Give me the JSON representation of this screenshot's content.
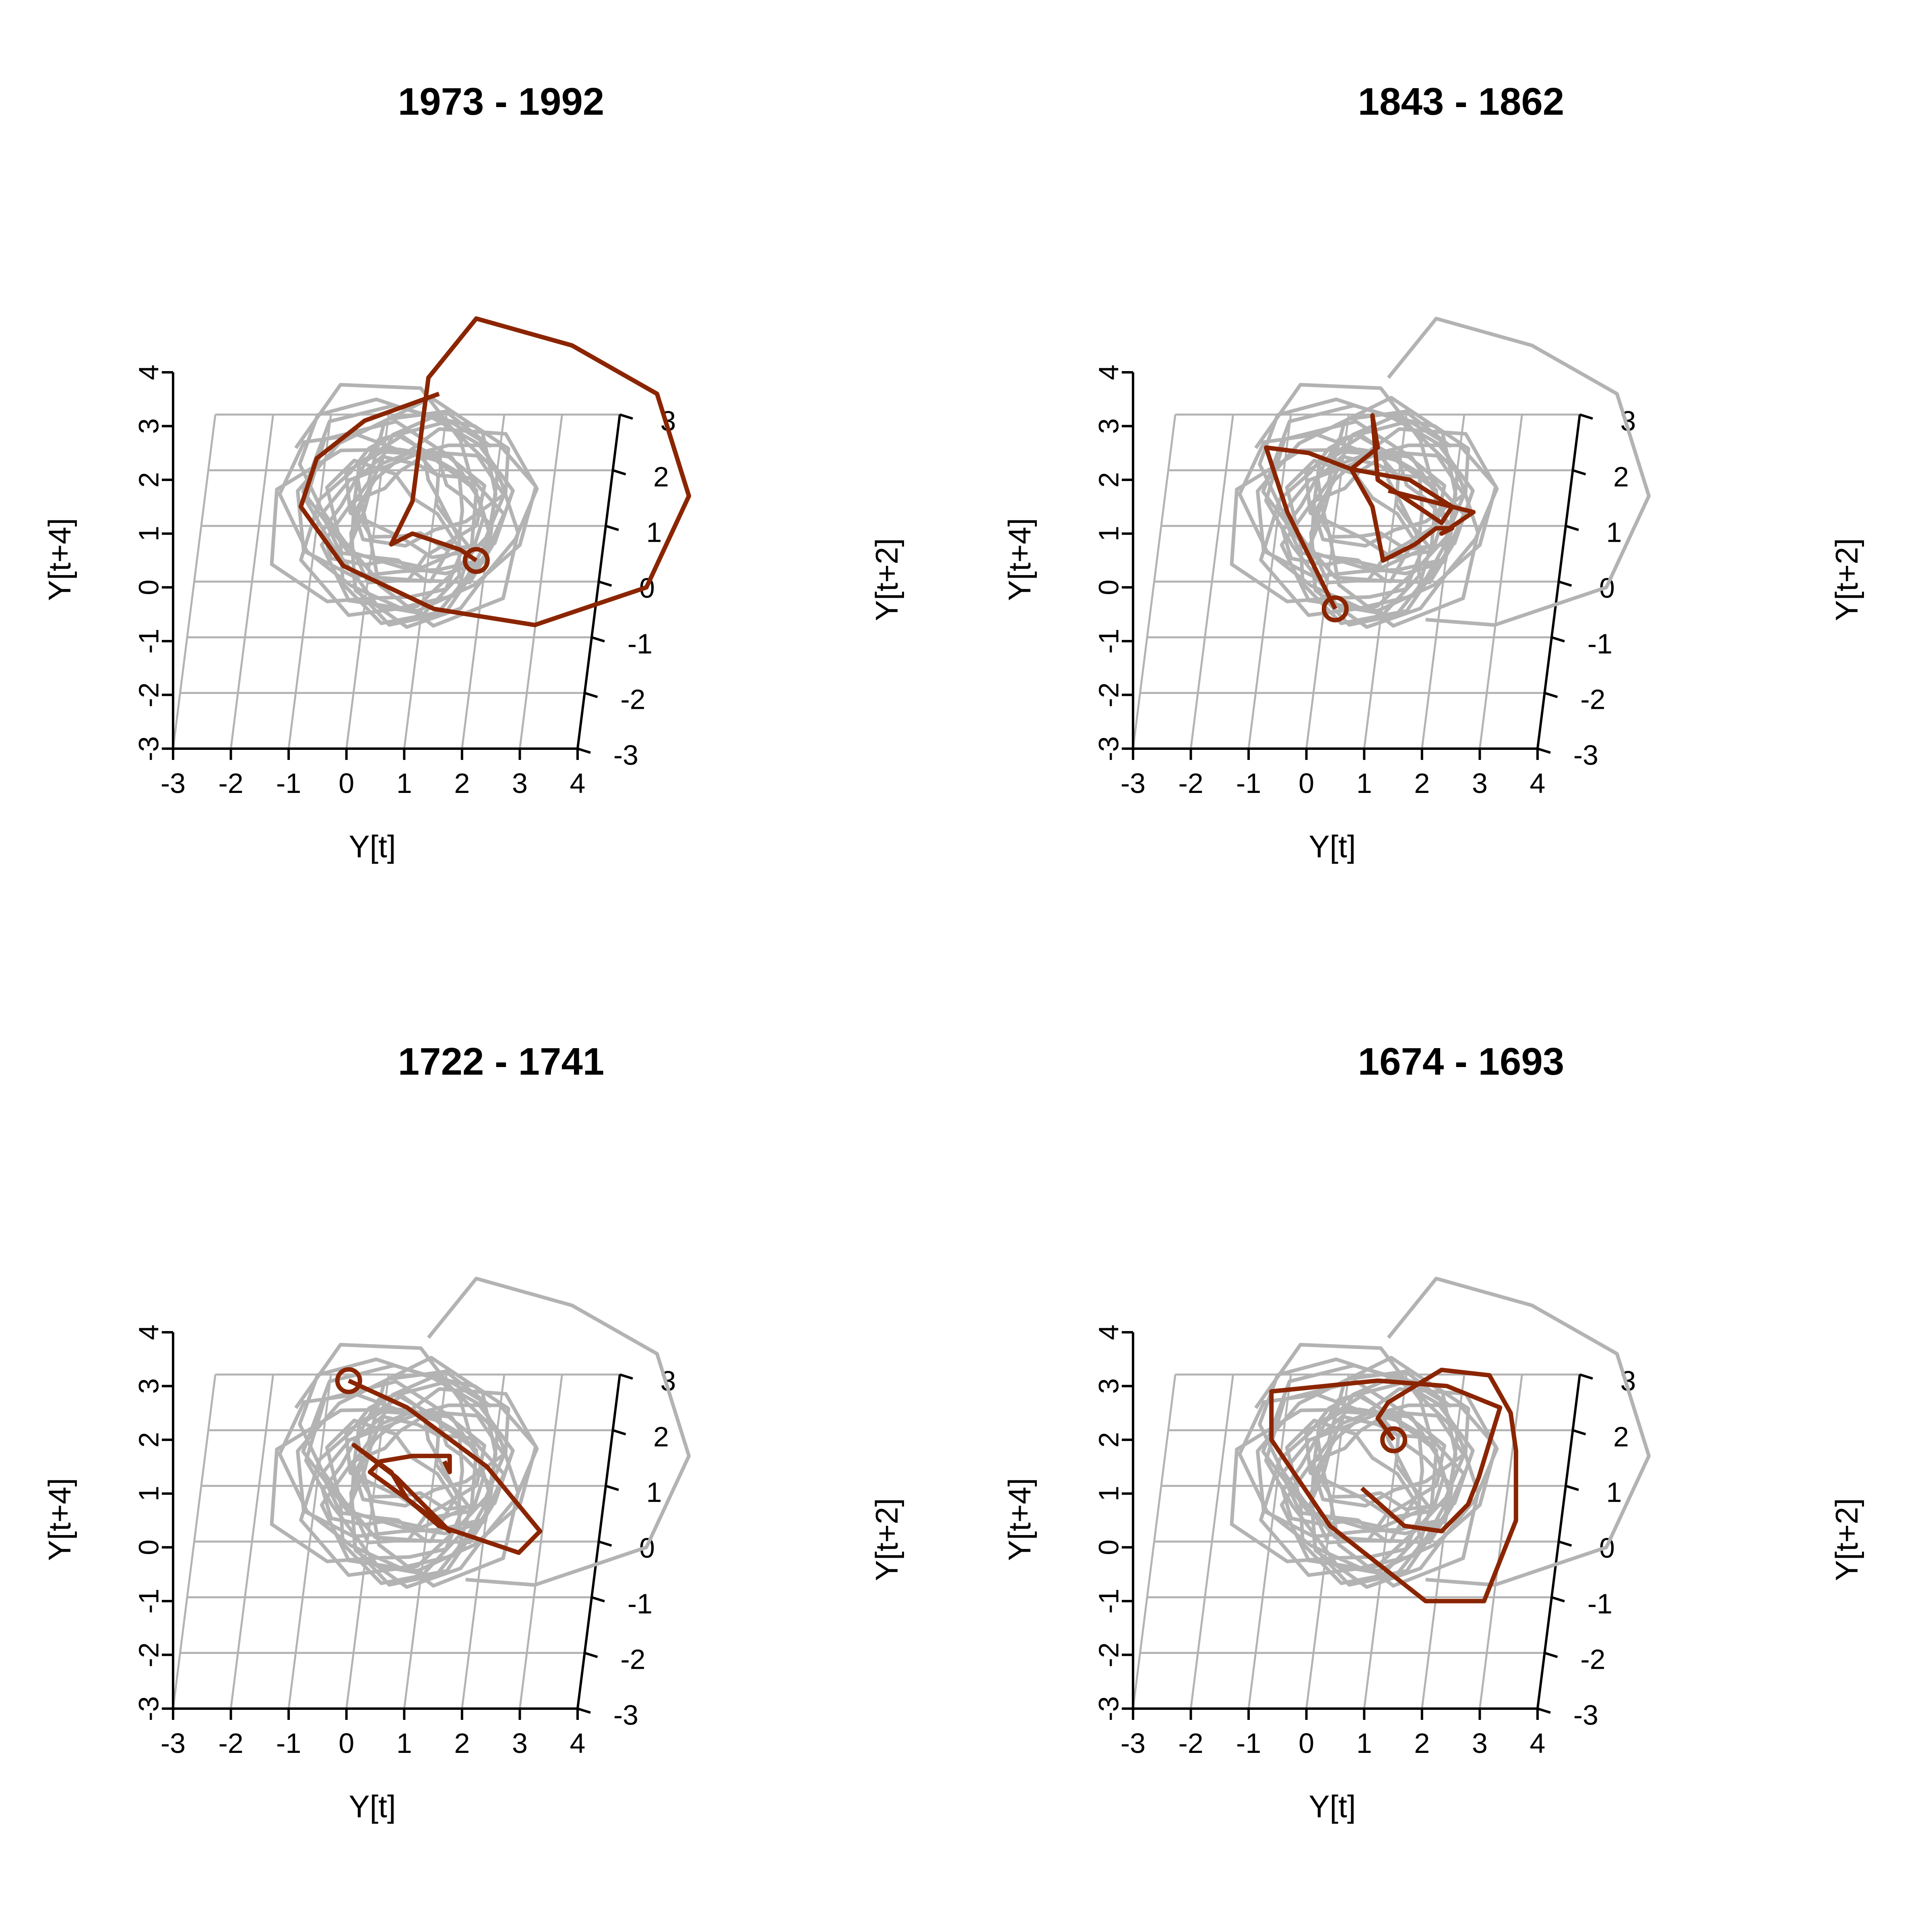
{
  "colors": {
    "background": "#ffffff",
    "highlight": "#8b2500",
    "background_trajectory": "#b3b3b3",
    "grid": "#b3b3b3",
    "axis": "#000000"
  },
  "axes": {
    "x_label": "Y[t]",
    "y_label": "Y[t+2]",
    "z_label": "Y[t+4]"
  },
  "chart_data": [
    {
      "type": "scatter3d-trajectory",
      "title": "1973 - 1992",
      "xlabel": "Y[t]",
      "ylabel": "Y[t+2]",
      "zlabel": "Y[t+4]",
      "x_ticks": [
        "-3",
        "-2",
        "-1",
        "0",
        "1",
        "2",
        "3",
        "4"
      ],
      "y_ticks": [
        "-3",
        "-2",
        "-1",
        "0",
        "1",
        "2",
        "3"
      ],
      "z_ticks": [
        "-3",
        "-2",
        "-1",
        "0",
        "1",
        "2",
        "3",
        "4"
      ],
      "xlim": [
        -3,
        4
      ],
      "ylim": [
        -3,
        3
      ],
      "zlim": [
        -3,
        4
      ],
      "background_trajectory": "full series (grey)",
      "highlight": {
        "start_marker": "circle",
        "points": [
          [
            2.4,
            0.5
          ],
          [
            2.1,
            0.7
          ],
          [
            1.2,
            1.0
          ],
          [
            0.8,
            0.8
          ],
          [
            1.2,
            1.6
          ],
          [
            1.5,
            3.9
          ],
          [
            2.4,
            5.0
          ],
          [
            4.2,
            4.5
          ],
          [
            5.8,
            3.6
          ],
          [
            6.4,
            1.7
          ],
          [
            5.6,
            0.0
          ],
          [
            3.5,
            -0.7
          ],
          [
            1.6,
            -0.4
          ],
          [
            -0.1,
            0.4
          ],
          [
            -0.9,
            1.5
          ],
          [
            -0.6,
            2.4
          ],
          [
            0.3,
            3.1
          ],
          [
            1.7,
            3.6
          ]
        ]
      }
    },
    {
      "type": "scatter3d-trajectory",
      "title": "1843 - 1862",
      "xlabel": "Y[t]",
      "ylabel": "Y[t+2]",
      "zlabel": "Y[t+4]",
      "x_ticks": [
        "-3",
        "-2",
        "-1",
        "0",
        "1",
        "2",
        "3",
        "4"
      ],
      "y_ticks": [
        "-3",
        "-2",
        "-1",
        "0",
        "1",
        "2",
        "3"
      ],
      "z_ticks": [
        "-3",
        "-2",
        "-1",
        "0",
        "1",
        "2",
        "3",
        "4"
      ],
      "xlim": [
        -3,
        4
      ],
      "ylim": [
        -3,
        3
      ],
      "zlim": [
        -3,
        4
      ],
      "background_trajectory": "full series (grey)",
      "highlight": {
        "start_marker": "circle",
        "points": [
          [
            0.5,
            -0.4
          ],
          [
            -0.4,
            1.4
          ],
          [
            -0.8,
            2.6
          ],
          [
            0.0,
            2.5
          ],
          [
            0.8,
            2.2
          ],
          [
            1.3,
            2.6
          ],
          [
            1.2,
            3.2
          ],
          [
            1.3,
            2.0
          ],
          [
            2.5,
            1.2
          ],
          [
            2.7,
            1.5
          ],
          [
            1.9,
            2.0
          ],
          [
            0.8,
            2.2
          ],
          [
            1.2,
            1.5
          ],
          [
            1.4,
            0.5
          ],
          [
            2.0,
            0.8
          ],
          [
            2.4,
            1.1
          ],
          [
            2.7,
            1.1
          ],
          [
            2.5,
            1.0
          ],
          [
            3.1,
            1.4
          ],
          [
            1.5,
            1.8
          ]
        ]
      }
    },
    {
      "type": "scatter3d-trajectory",
      "title": "1722 - 1741",
      "xlabel": "Y[t]",
      "ylabel": "Y[t+2]",
      "zlabel": "Y[t+4]",
      "x_ticks": [
        "-3",
        "-2",
        "-1",
        "0",
        "1",
        "2",
        "3",
        "4"
      ],
      "y_ticks": [
        "-3",
        "-2",
        "-1",
        "0",
        "1",
        "2",
        "3"
      ],
      "z_ticks": [
        "-3",
        "-2",
        "-1",
        "0",
        "1",
        "2",
        "3",
        "4"
      ],
      "xlim": [
        -3,
        4
      ],
      "ylim": [
        -3,
        3
      ],
      "zlim": [
        -3,
        4
      ],
      "background_trajectory": "full series (grey)",
      "highlight": {
        "start_marker": "circle",
        "points": [
          [
            0.0,
            3.1
          ],
          [
            1.1,
            2.6
          ],
          [
            2.6,
            1.5
          ],
          [
            3.6,
            0.3
          ],
          [
            3.2,
            -0.1
          ],
          [
            2.3,
            0.2
          ],
          [
            1.7,
            0.4
          ],
          [
            1.1,
            0.9
          ],
          [
            0.8,
            1.4
          ],
          [
            0.1,
            1.9
          ],
          [
            0.9,
            1.3
          ],
          [
            1.9,
            0.3
          ],
          [
            1.1,
            0.9
          ],
          [
            0.4,
            1.4
          ],
          [
            0.6,
            1.6
          ],
          [
            1.2,
            1.7
          ],
          [
            1.9,
            1.7
          ],
          [
            1.9,
            1.4
          ],
          [
            1.8,
            1.6
          ]
        ]
      }
    },
    {
      "type": "scatter3d-trajectory",
      "title": "1674 - 1693",
      "xlabel": "Y[t]",
      "ylabel": "Y[t+2]",
      "zlabel": "Y[t+4]",
      "x_ticks": [
        "-3",
        "-2",
        "-1",
        "0",
        "1",
        "2",
        "3",
        "4"
      ],
      "y_ticks": [
        "-3",
        "-2",
        "-1",
        "0",
        "1",
        "2",
        "3"
      ],
      "z_ticks": [
        "-3",
        "-2",
        "-1",
        "0",
        "1",
        "2",
        "3",
        "4"
      ],
      "xlim": [
        -3,
        4
      ],
      "ylim": [
        -3,
        3
      ],
      "zlim": [
        -3,
        4
      ],
      "background_trajectory": "full series (grey)",
      "highlight": {
        "start_marker": "circle",
        "points": [
          [
            1.6,
            2.0
          ],
          [
            1.3,
            2.4
          ],
          [
            1.5,
            2.7
          ],
          [
            2.5,
            3.3
          ],
          [
            3.4,
            3.2
          ],
          [
            3.8,
            2.5
          ],
          [
            3.9,
            1.8
          ],
          [
            3.9,
            0.5
          ],
          [
            3.3,
            -1.0
          ],
          [
            2.2,
            -1.0
          ],
          [
            0.4,
            0.4
          ],
          [
            -0.7,
            2.0
          ],
          [
            -0.7,
            2.9
          ],
          [
            1.3,
            3.1
          ],
          [
            2.6,
            3.0
          ],
          [
            3.6,
            2.6
          ],
          [
            3.2,
            1.3
          ],
          [
            3.0,
            0.8
          ],
          [
            2.5,
            0.3
          ],
          [
            1.8,
            0.4
          ],
          [
            1.0,
            1.1
          ]
        ]
      }
    }
  ]
}
